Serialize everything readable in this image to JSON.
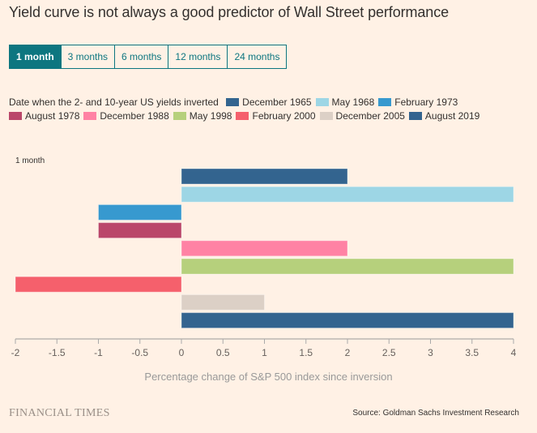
{
  "header": {
    "title": "Yield curve is not always a good predictor of Wall Street performance"
  },
  "tabs": [
    {
      "label": "1 month",
      "active": true
    },
    {
      "label": "3 months",
      "active": false
    },
    {
      "label": "6 months",
      "active": false
    },
    {
      "label": "12 months",
      "active": false
    },
    {
      "label": "24 months",
      "active": false
    }
  ],
  "legend": {
    "title": "Date when the 2- and 10-year US yields inverted"
  },
  "footer": {
    "logo": "FINANCIAL TIMES",
    "source": "Source: Goldman Sachs Investment Research"
  },
  "chart_data": {
    "type": "bar",
    "orientation": "horizontal",
    "panel_label": "1 month",
    "categories": [
      "December 1965",
      "May 1968",
      "February 1973",
      "August 1978",
      "December 1988",
      "May 1998",
      "February 2000",
      "December 2005",
      "August 2019"
    ],
    "values": [
      2,
      4,
      -1,
      -1,
      2,
      4,
      -2,
      1,
      4
    ],
    "colors": [
      "#33648f",
      "#9dd6e5",
      "#3799cf",
      "#ba476a",
      "#ff82a4",
      "#b6d07c",
      "#f5606c",
      "#dcd0c6",
      "#33648f"
    ],
    "xlabel": "Percentage change of S&P 500 index since inversion",
    "ylabel": "",
    "xlim": [
      -2,
      4
    ],
    "xticks": [
      "-2",
      "-1.5",
      "-1",
      "-0.5",
      "0",
      "0.5",
      "1",
      "1.5",
      "2",
      "2.5",
      "3",
      "3.5",
      "4"
    ],
    "xtick_values": [
      -2,
      -1.5,
      -1,
      -0.5,
      0,
      0.5,
      1,
      1.5,
      2,
      2.5,
      3,
      3.5,
      4
    ],
    "grid": false,
    "legend_position": "top"
  }
}
